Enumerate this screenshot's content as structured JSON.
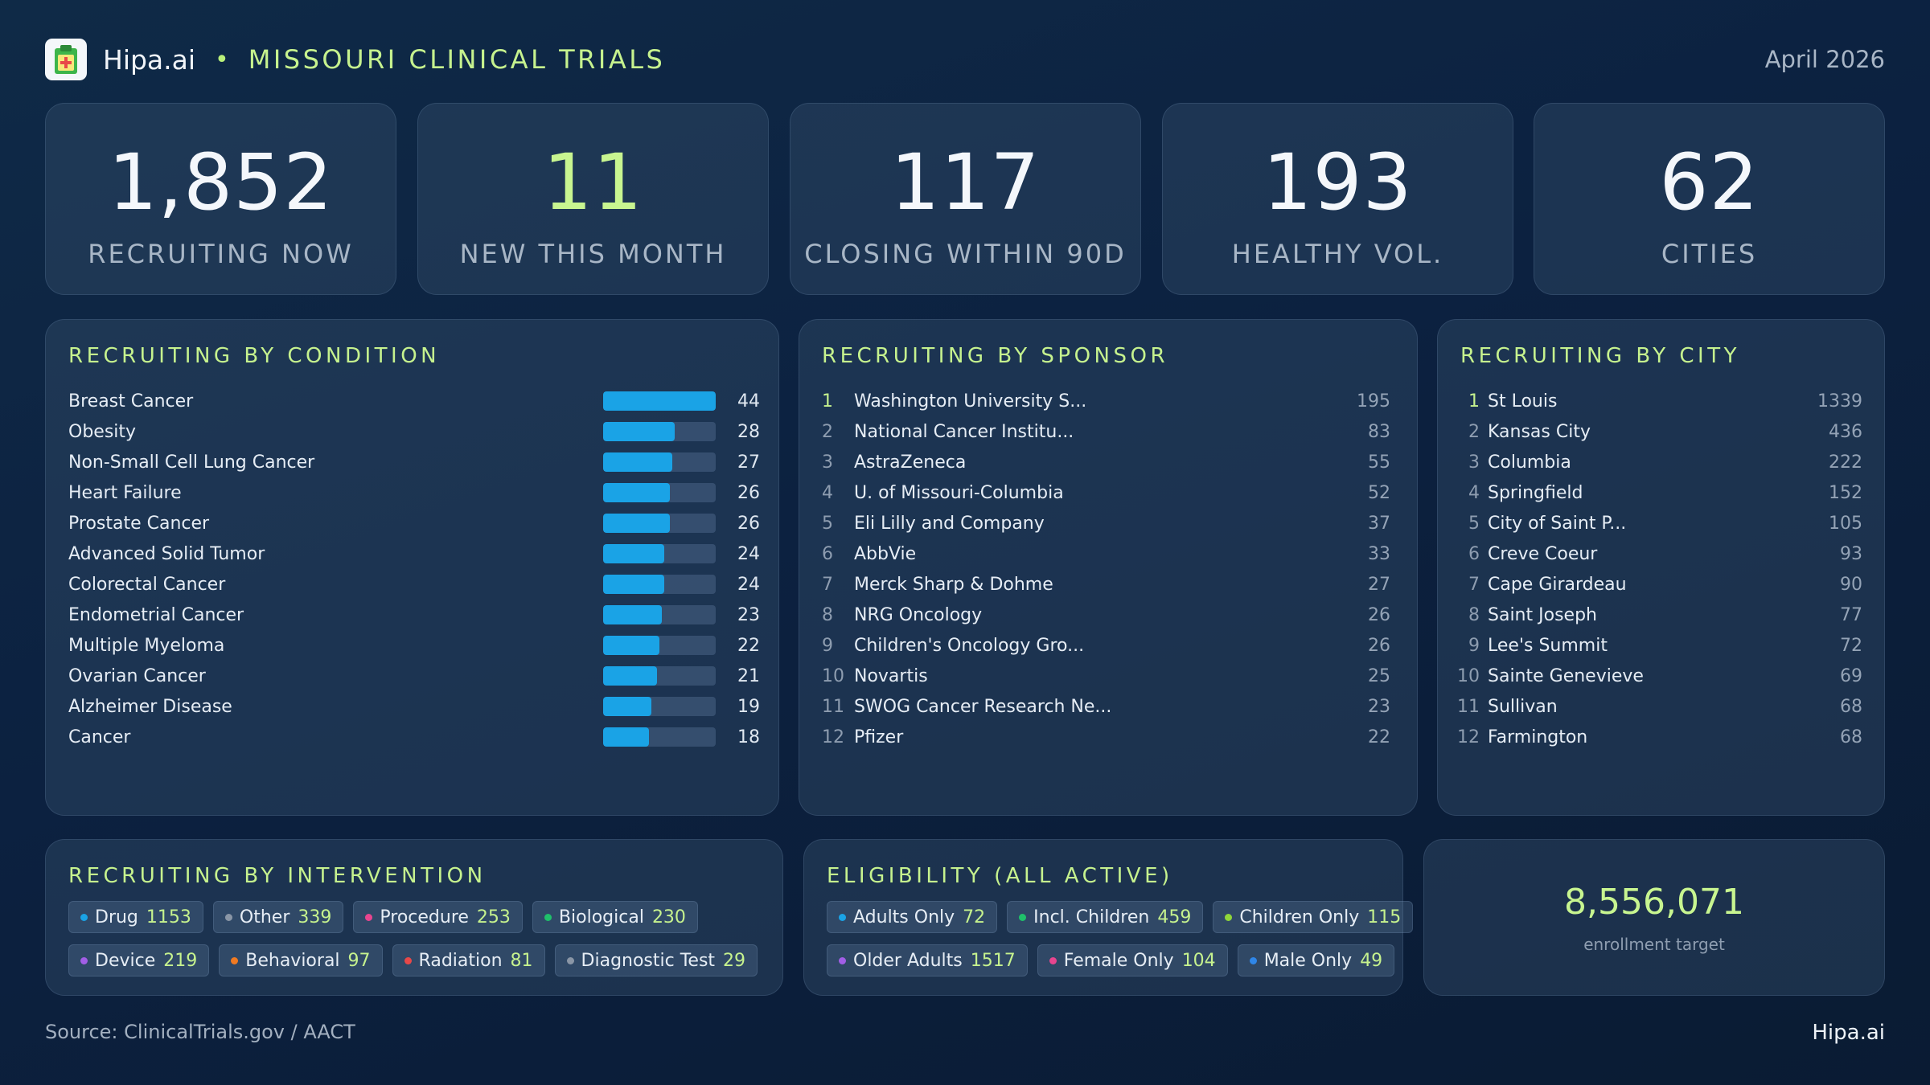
{
  "header": {
    "brand": "Hipa.ai",
    "separator": "•",
    "title": "MISSOURI CLINICAL TRIALS",
    "date": "April 2026"
  },
  "kpis": [
    {
      "value": "1,852",
      "label": "RECRUITING NOW",
      "accent": false
    },
    {
      "value": "11",
      "label": "NEW THIS MONTH",
      "accent": true
    },
    {
      "value": "117",
      "label": "CLOSING WITHIN 90D",
      "accent": false
    },
    {
      "value": "193",
      "label": "HEALTHY VOL.",
      "accent": false
    },
    {
      "value": "62",
      "label": "CITIES",
      "accent": false
    }
  ],
  "condition": {
    "title": "RECRUITING BY CONDITION",
    "max": 44,
    "items": [
      {
        "name": "Breast Cancer",
        "value": 44
      },
      {
        "name": "Obesity",
        "value": 28
      },
      {
        "name": "Non-Small Cell Lung Cancer",
        "value": 27
      },
      {
        "name": "Heart Failure",
        "value": 26
      },
      {
        "name": "Prostate Cancer",
        "value": 26
      },
      {
        "name": "Advanced Solid Tumor",
        "value": 24
      },
      {
        "name": "Colorectal Cancer",
        "value": 24
      },
      {
        "name": "Endometrial Cancer",
        "value": 23
      },
      {
        "name": "Multiple Myeloma",
        "value": 22
      },
      {
        "name": "Ovarian Cancer",
        "value": 21
      },
      {
        "name": "Alzheimer Disease",
        "value": 19
      },
      {
        "name": "Cancer",
        "value": 18
      }
    ]
  },
  "sponsor": {
    "title": "RECRUITING BY SPONSOR",
    "items": [
      {
        "rank": "1",
        "name": "Washington University S...",
        "value": "195"
      },
      {
        "rank": "2",
        "name": "National Cancer Institu...",
        "value": "83"
      },
      {
        "rank": "3",
        "name": "AstraZeneca",
        "value": "55"
      },
      {
        "rank": "4",
        "name": "U. of Missouri-Columbia",
        "value": "52"
      },
      {
        "rank": "5",
        "name": "Eli Lilly and Company",
        "value": "37"
      },
      {
        "rank": "6",
        "name": "AbbVie",
        "value": "33"
      },
      {
        "rank": "7",
        "name": "Merck Sharp & Dohme",
        "value": "27"
      },
      {
        "rank": "8",
        "name": "NRG Oncology",
        "value": "26"
      },
      {
        "rank": "9",
        "name": "Children's Oncology Gro...",
        "value": "26"
      },
      {
        "rank": "10",
        "name": "Novartis",
        "value": "25"
      },
      {
        "rank": "11",
        "name": "SWOG Cancer Research Ne...",
        "value": "23"
      },
      {
        "rank": "12",
        "name": "Pfizer",
        "value": "22"
      }
    ]
  },
  "city": {
    "title": "RECRUITING BY CITY",
    "items": [
      {
        "rank": "1",
        "name": "St Louis",
        "value": "1339"
      },
      {
        "rank": "2",
        "name": "Kansas City",
        "value": "436"
      },
      {
        "rank": "3",
        "name": "Columbia",
        "value": "222"
      },
      {
        "rank": "4",
        "name": "Springfield",
        "value": "152"
      },
      {
        "rank": "5",
        "name": "City of Saint P...",
        "value": "105"
      },
      {
        "rank": "6",
        "name": "Creve Coeur",
        "value": "93"
      },
      {
        "rank": "7",
        "name": "Cape Girardeau",
        "value": "90"
      },
      {
        "rank": "8",
        "name": "Saint Joseph",
        "value": "77"
      },
      {
        "rank": "9",
        "name": "Lee's Summit",
        "value": "72"
      },
      {
        "rank": "10",
        "name": "Sainte Genevieve",
        "value": "69"
      },
      {
        "rank": "11",
        "name": "Sullivan",
        "value": "68"
      },
      {
        "rank": "12",
        "name": "Farmington",
        "value": "68"
      }
    ]
  },
  "intervention": {
    "title": "RECRUITING BY INTERVENTION",
    "rows": [
      [
        {
          "label": "Drug",
          "value": "1153",
          "color": "#1aa3e6"
        },
        {
          "label": "Other",
          "value": "339",
          "color": "#8a96a6"
        },
        {
          "label": "Procedure",
          "value": "253",
          "color": "#e8458f"
        },
        {
          "label": "Biological",
          "value": "230",
          "color": "#1fc06a"
        }
      ],
      [
        {
          "label": "Device",
          "value": "219",
          "color": "#a25ee6"
        },
        {
          "label": "Behavioral",
          "value": "97",
          "color": "#f07a22"
        },
        {
          "label": "Radiation",
          "value": "81",
          "color": "#e84848"
        },
        {
          "label": "Diagnostic Test",
          "value": "29",
          "color": "#8a96a6"
        }
      ]
    ]
  },
  "eligibility": {
    "title": "ELIGIBILITY (ALL ACTIVE)",
    "rows": [
      [
        {
          "label": "Adults Only",
          "value": "72",
          "color": "#1aa3e6"
        },
        {
          "label": "Incl. Children",
          "value": "459",
          "color": "#1fc06a"
        },
        {
          "label": "Children Only",
          "value": "115",
          "color": "#8fd63a"
        }
      ],
      [
        {
          "label": "Older Adults",
          "value": "1517",
          "color": "#a25ee6"
        },
        {
          "label": "Female Only",
          "value": "104",
          "color": "#e8458f"
        },
        {
          "label": "Male Only",
          "value": "49",
          "color": "#2f86e8"
        }
      ]
    ]
  },
  "target": {
    "value": "8,556,071",
    "label": "enrollment target"
  },
  "footer": {
    "source": "Source: ClinicalTrials.gov / AACT",
    "brand": "Hipa.ai"
  }
}
